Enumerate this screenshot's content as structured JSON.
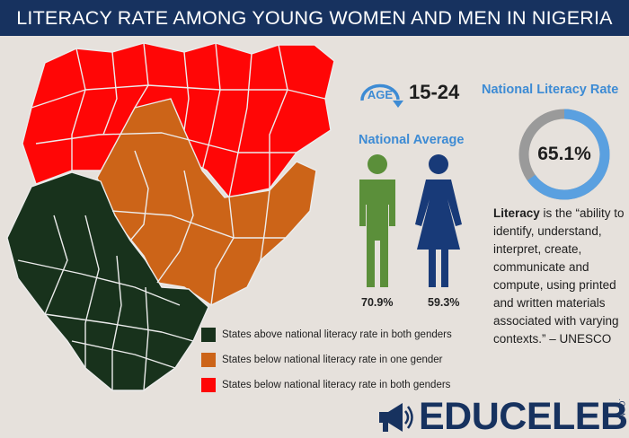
{
  "header": {
    "title": "LITERACY RATE AMONG YOUNG WOMEN AND MEN IN NIGERIA"
  },
  "age_group": {
    "badge": "AGE",
    "range": "15-24"
  },
  "national_average": {
    "label": "National Average",
    "male_rate": "70.9%",
    "female_rate": "59.3%",
    "male_icon": "male-figure-icon",
    "female_icon": "female-figure-icon",
    "male_color": "#5b8f3a",
    "female_color": "#183a78"
  },
  "national_literacy": {
    "label": "National Literacy Rate",
    "value": "65.1%",
    "fraction": 0.651,
    "ring_color": "#5aa0e0",
    "track_color": "#9a9a9a"
  },
  "definition": {
    "term": "Literacy",
    "text": " is the “ability to identify, understand, interpret, create, communicate and compute, using printed and written materials associated with varying contexts.” – UNESCO"
  },
  "legend": [
    {
      "label": "States above national literacy rate in both genders",
      "color": "#18321c"
    },
    {
      "label": "States below national literacy rate in one gender",
      "color": "#cc6418"
    },
    {
      "label": "States below national literacy rate in both genders",
      "color": "#ff0606"
    }
  ],
  "brand": {
    "name": "EDUCELEB",
    "suffix": ".COM",
    "icon": "megaphone-icon"
  }
}
